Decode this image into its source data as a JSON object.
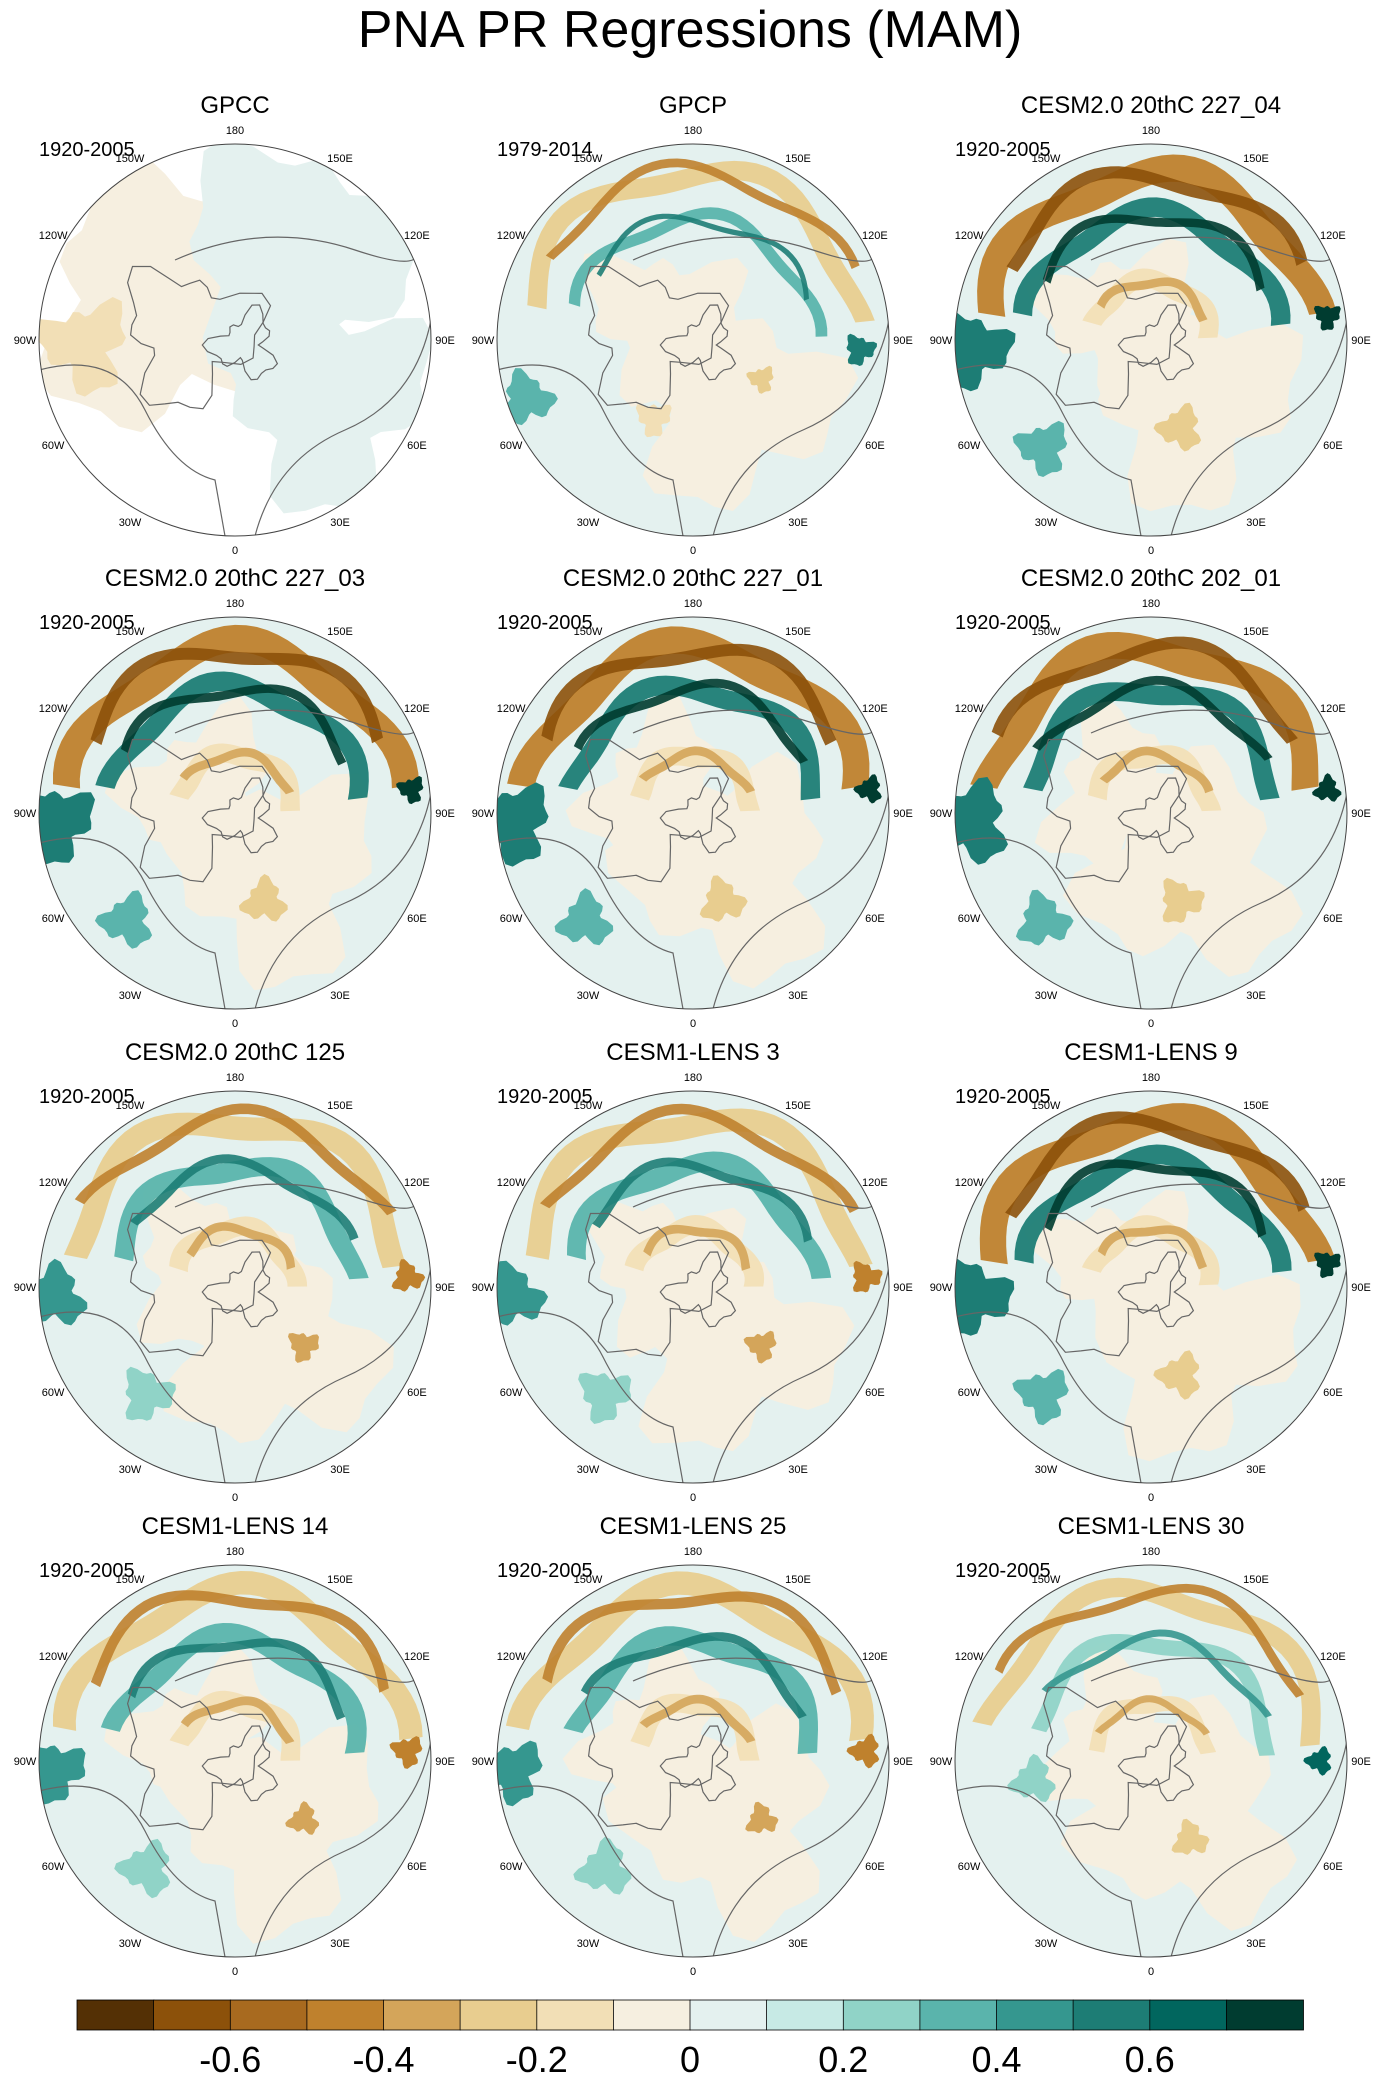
{
  "figure": {
    "title": "PNA PR Regressions (MAM)"
  },
  "colors": {
    "palette": [
      "#543005",
      "#8c510a",
      "#a86a1f",
      "#bf812d",
      "#d4a55a",
      "#e8cd8f",
      "#f2dfb6",
      "#f6efe0",
      "#e4f1ef",
      "#c7eae5",
      "#90d3c7",
      "#5ab4ac",
      "#35978f",
      "#1d7d75",
      "#01665e",
      "#003c30"
    ],
    "land_outline": "#666666",
    "no_data": "#ffffff"
  },
  "longitude_labels": [
    {
      "deg": 180,
      "text": "180"
    },
    {
      "deg": 150,
      "text": "150E"
    },
    {
      "deg": 120,
      "text": "120E"
    },
    {
      "deg": 90,
      "text": "90E"
    },
    {
      "deg": 60,
      "text": "60E"
    },
    {
      "deg": 30,
      "text": "30E"
    },
    {
      "deg": 0,
      "text": "0"
    },
    {
      "deg": -30,
      "text": "30W"
    },
    {
      "deg": -60,
      "text": "60W"
    },
    {
      "deg": -90,
      "text": "90W"
    },
    {
      "deg": -120,
      "text": "120W"
    },
    {
      "deg": -150,
      "text": "150W"
    }
  ],
  "panels": [
    {
      "title": "GPCC",
      "period": "1920-2005",
      "style": "gpcc"
    },
    {
      "title": "GPCP",
      "period": "1979-2014",
      "style": "obs"
    },
    {
      "title": "CESM2.0 20thC 227_04",
      "period": "1920-2005",
      "style": "strong"
    },
    {
      "title": "CESM2.0 20thC 227_03",
      "period": "1920-2005",
      "style": "strong"
    },
    {
      "title": "CESM2.0 20thC 227_01",
      "period": "1920-2005",
      "style": "strong"
    },
    {
      "title": "CESM2.0 20thC 202_01",
      "period": "1920-2005",
      "style": "strong"
    },
    {
      "title": "CESM2.0 20thC 125",
      "period": "1920-2005",
      "style": "medium"
    },
    {
      "title": "CESM1-LENS 3",
      "period": "1920-2005",
      "style": "medium"
    },
    {
      "title": "CESM1-LENS 9",
      "period": "1920-2005",
      "style": "strong"
    },
    {
      "title": "CESM1-LENS 14",
      "period": "1920-2005",
      "style": "medium"
    },
    {
      "title": "CESM1-LENS 25",
      "period": "1920-2005",
      "style": "medium"
    },
    {
      "title": "CESM1-LENS 30",
      "period": "1920-2005",
      "style": "weak"
    }
  ],
  "chart_data": {
    "type": "heatmap",
    "title": "PNA PR Regressions (MAM)",
    "projection": "north polar stereographic",
    "colorbar": {
      "levels": [
        -0.7,
        -0.6,
        -0.5,
        -0.4,
        -0.3,
        -0.2,
        -0.1,
        0,
        0.1,
        0.2,
        0.3,
        0.4,
        0.5,
        0.6,
        0.7
      ],
      "tick_values": [
        -0.6,
        -0.4,
        -0.2,
        0,
        0.2,
        0.4,
        0.6
      ],
      "tick_labels": [
        "-0.6",
        "-0.4",
        "-0.2",
        "0",
        "0.2",
        "0.4",
        "0.6"
      ],
      "range": [
        -0.8,
        0.8
      ]
    }
  }
}
